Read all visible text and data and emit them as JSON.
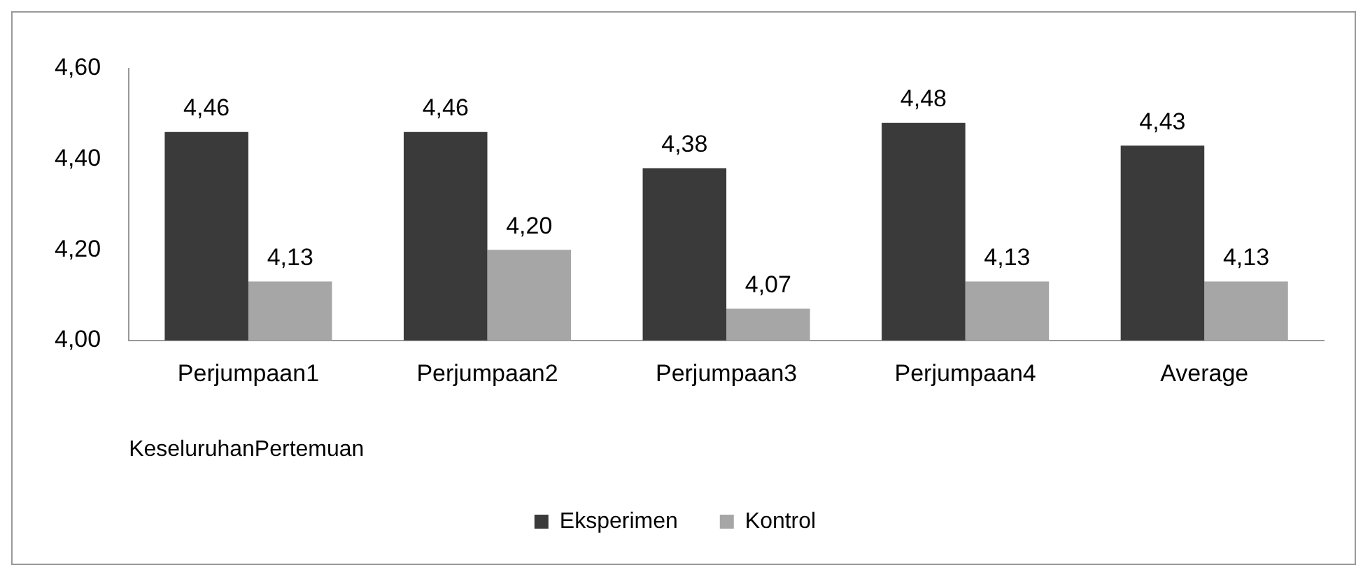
{
  "chart_data": {
    "type": "bar",
    "categories": [
      "Perjumpaan1",
      "Perjumpaan2",
      "Perjumpaan3",
      "Perjumpaan4",
      "Average"
    ],
    "xlabel": "KeseluruhanPertemuan",
    "series": [
      {
        "name": "Eksperimen",
        "color": "#3a3a3a",
        "values": [
          4.46,
          4.46,
          4.38,
          4.48,
          4.43
        ],
        "value_labels": [
          "4,46",
          "4,46",
          "4,38",
          "4,48",
          "4,43"
        ]
      },
      {
        "name": "Kontrol",
        "color": "#a6a6a6",
        "values": [
          4.13,
          4.2,
          4.07,
          4.13,
          4.13
        ],
        "value_labels": [
          "4,13",
          "4,20",
          "4,07",
          "4,13",
          "4,13"
        ]
      }
    ],
    "ylim": [
      4,
      4.6
    ],
    "yticks": [
      {
        "value": 4,
        "label": "4,00"
      },
      {
        "value": 4.2,
        "label": "4,20"
      },
      {
        "value": 4.4,
        "label": "4,40"
      },
      {
        "value": 4.6,
        "label": "4,60"
      }
    ],
    "grid": false,
    "legend": "bottom"
  }
}
